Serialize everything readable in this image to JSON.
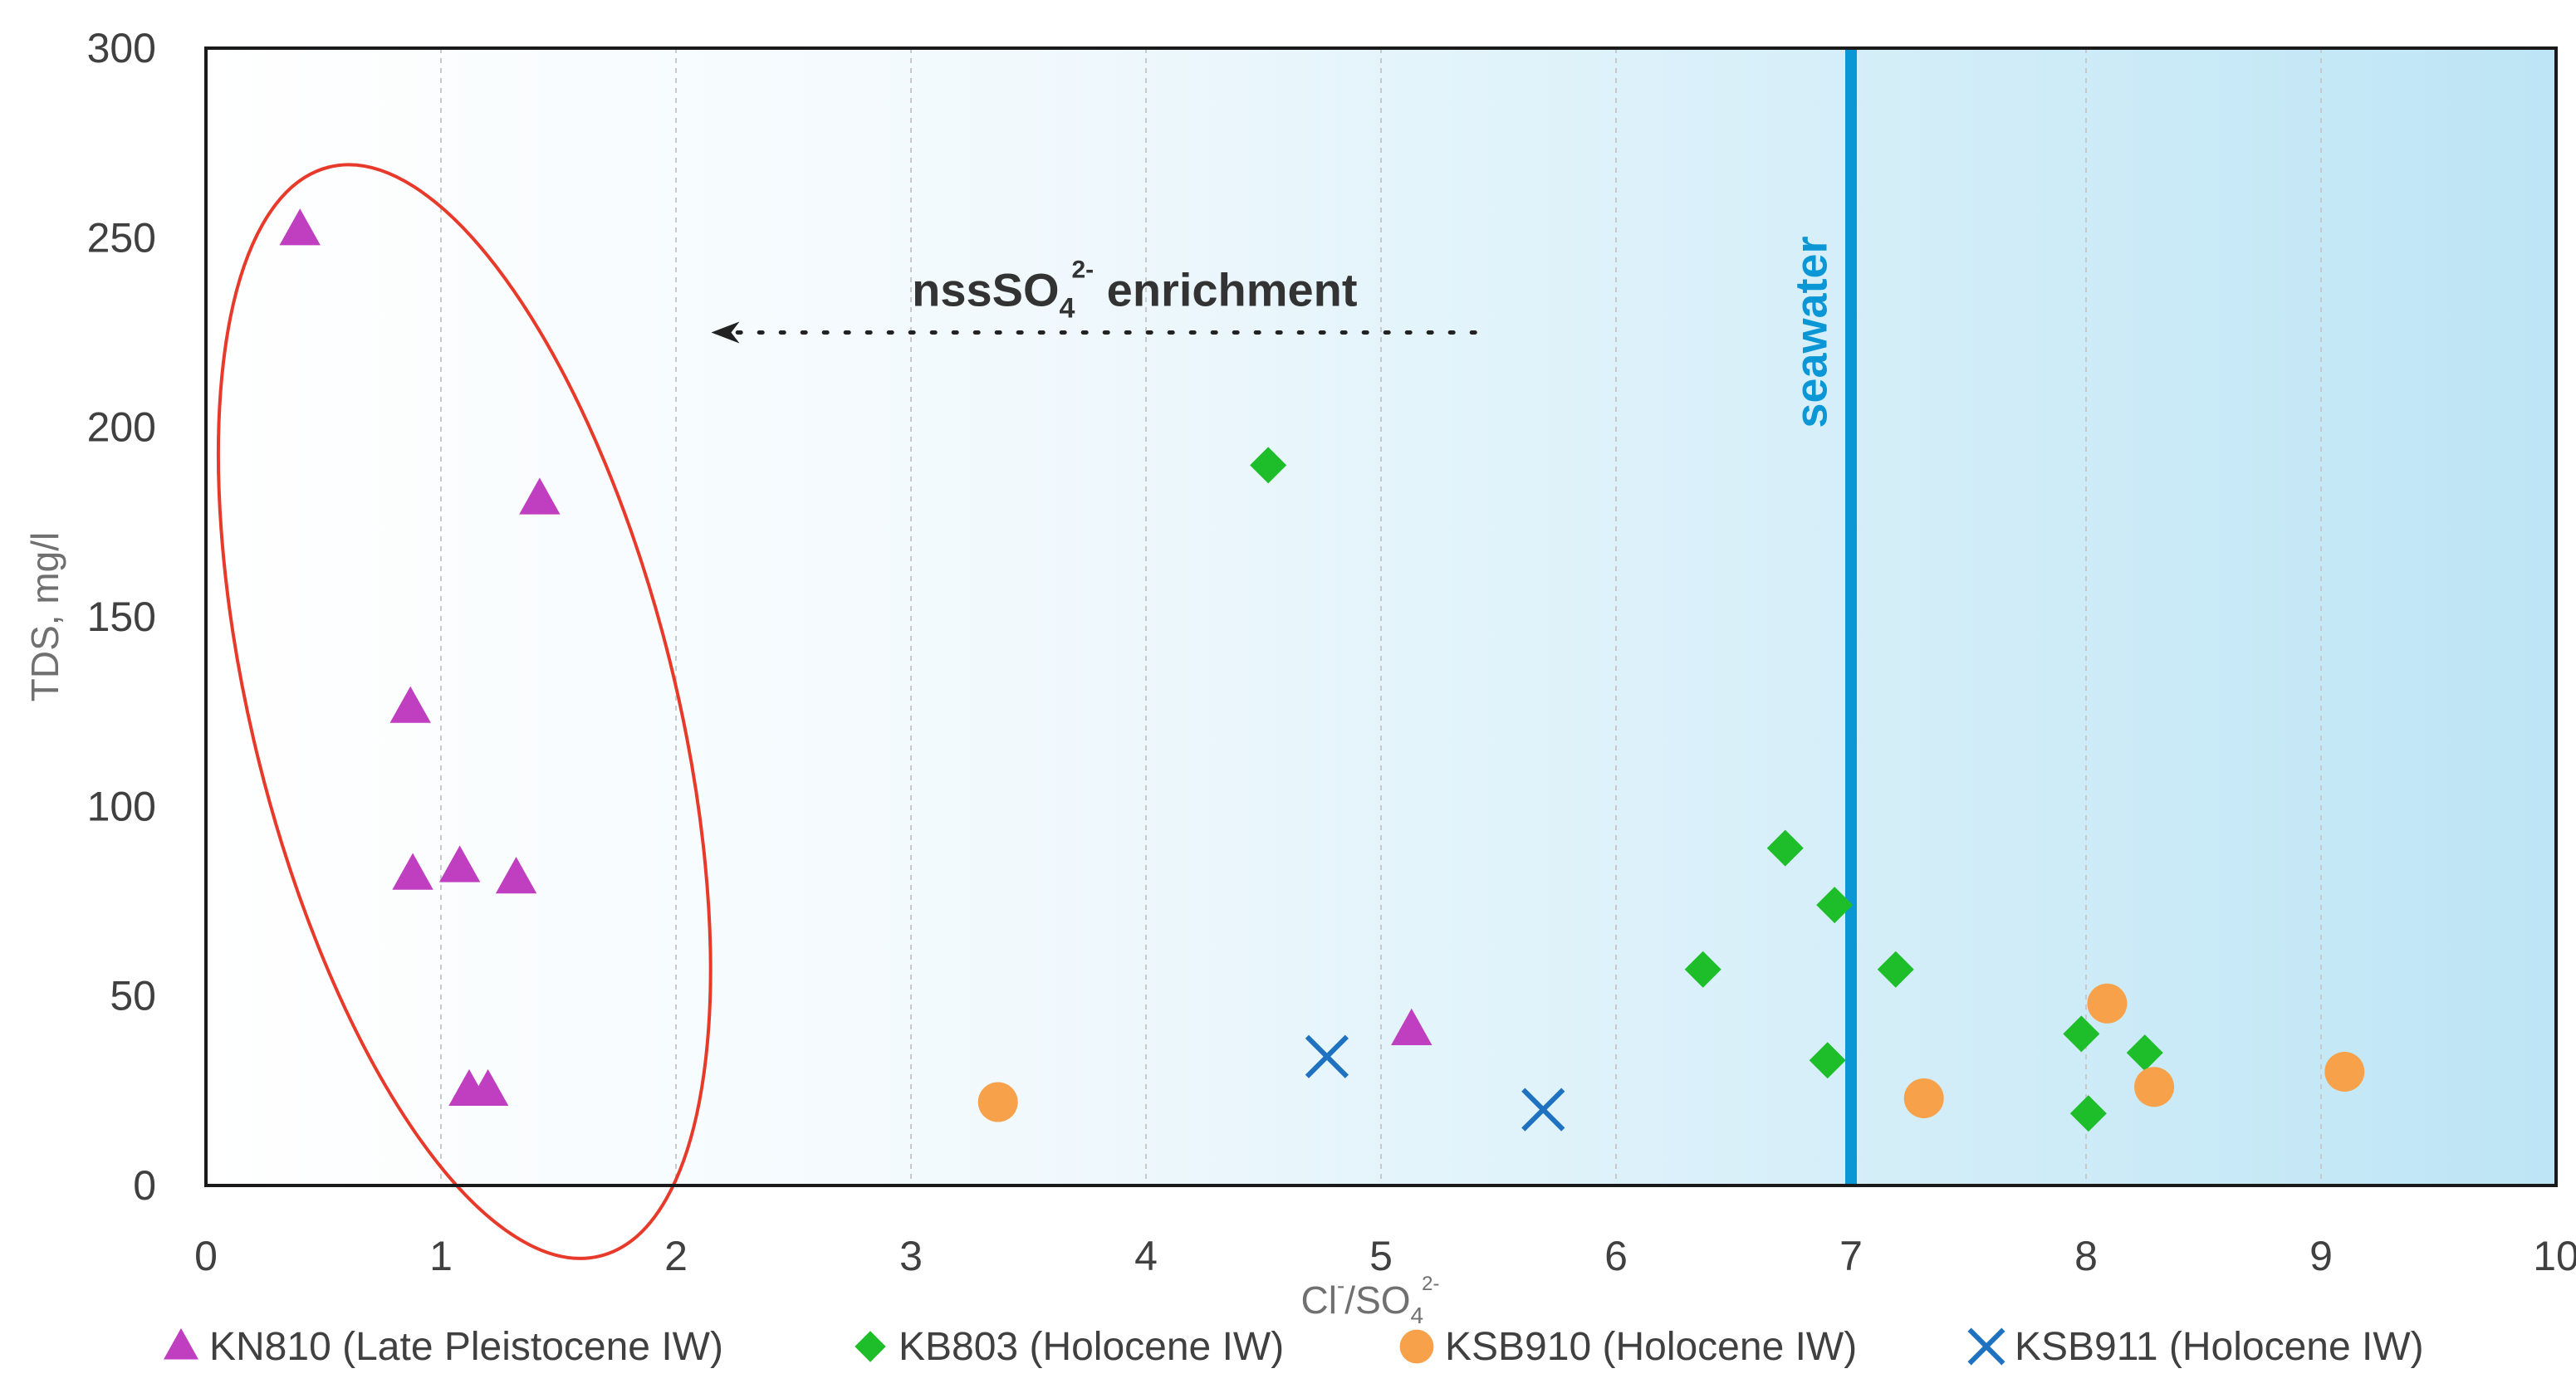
{
  "chart_data": {
    "type": "scatter",
    "title": "",
    "xlabel": "Cl⁻/SO₄²⁻",
    "xlabel_parts": {
      "base1": "Cl",
      "sup1": "-",
      "sep": "/SO",
      "sub": "4",
      "sup2": "2-"
    },
    "ylabel": "TDS, mg/l",
    "xlim": [
      0,
      10
    ],
    "ylim": [
      0,
      300
    ],
    "xticks": [
      "0",
      "1",
      "2",
      "3",
      "4",
      "5",
      "6",
      "7",
      "8",
      "9",
      "10"
    ],
    "yticks": [
      "0",
      "50",
      "100",
      "150",
      "200",
      "250",
      "300"
    ],
    "grid": "vertical dashed",
    "legend_position": "bottom",
    "series": [
      {
        "name": "KN810 (Late Pleistocene IW)",
        "marker": "triangle",
        "color": "#c03fc0",
        "points": [
          {
            "x": 0.4,
            "y": 252
          },
          {
            "x": 1.42,
            "y": 181
          },
          {
            "x": 0.87,
            "y": 126
          },
          {
            "x": 0.88,
            "y": 82
          },
          {
            "x": 1.08,
            "y": 84
          },
          {
            "x": 1.32,
            "y": 81
          },
          {
            "x": 1.12,
            "y": 25
          },
          {
            "x": 1.2,
            "y": 25
          },
          {
            "x": 5.13,
            "y": 41
          }
        ]
      },
      {
        "name": "KB803 (Holocene IW)",
        "marker": "diamond",
        "color": "#1dbe2a",
        "points": [
          {
            "x": 4.52,
            "y": 190
          },
          {
            "x": 6.72,
            "y": 89
          },
          {
            "x": 6.93,
            "y": 74
          },
          {
            "x": 6.37,
            "y": 57
          },
          {
            "x": 7.19,
            "y": 57
          },
          {
            "x": 6.9,
            "y": 33
          },
          {
            "x": 7.98,
            "y": 40
          },
          {
            "x": 8.25,
            "y": 35
          },
          {
            "x": 8.01,
            "y": 19
          }
        ]
      },
      {
        "name": "KSB910 (Holocene IW)",
        "marker": "circle",
        "color": "#f7a24a",
        "points": [
          {
            "x": 3.37,
            "y": 22
          },
          {
            "x": 7.31,
            "y": 23
          },
          {
            "x": 8.09,
            "y": 48
          },
          {
            "x": 8.29,
            "y": 26
          },
          {
            "x": 9.1,
            "y": 30
          }
        ]
      },
      {
        "name": "KSB911 (Holocene IW)",
        "marker": "x",
        "color": "#1f72bf",
        "points": [
          {
            "x": 4.77,
            "y": 34
          },
          {
            "x": 5.69,
            "y": 20
          }
        ]
      }
    ],
    "reference_line": {
      "x": 7.0,
      "label": "seawater",
      "color": "#0b97d5"
    },
    "annotation": {
      "parts": {
        "base": "nssSO",
        "sub": "4",
        "sup": "2-",
        "rest": " enrichment"
      },
      "text": "nssSO₄²⁻ enrichment",
      "arrow": {
        "from_x": 5.4,
        "to_x": 2.15,
        "y": 225
      }
    },
    "highlight_ellipse": {
      "cx": 1.1,
      "cy": 125,
      "rx_data": 0.9,
      "ry_data": 148,
      "rotation_deg": -14,
      "color": "#e83a2a"
    },
    "background_gradient": [
      "#ffffff",
      "#bde5f5"
    ]
  }
}
